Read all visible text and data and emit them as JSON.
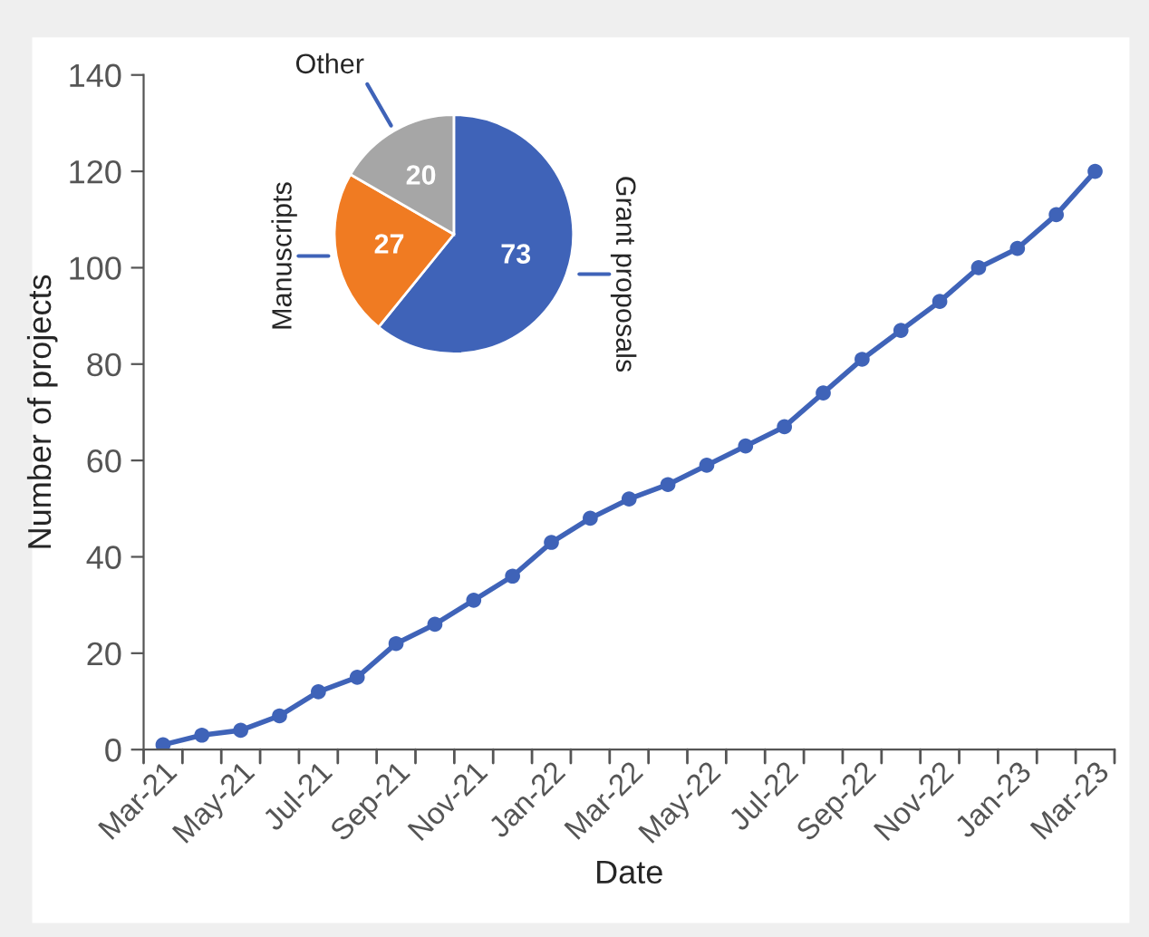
{
  "chart_data": [
    {
      "type": "line",
      "xlabel": "Date",
      "ylabel": "Number of projects",
      "categories": [
        "Mar-21",
        null,
        "May-21",
        null,
        "Jul-21",
        null,
        "Sep-21",
        null,
        "Nov-21",
        null,
        "Jan-22",
        null,
        "Mar-22",
        null,
        "May-22",
        null,
        "Jul-22",
        null,
        "Sep-22",
        null,
        "Nov-22",
        null,
        "Jan-23",
        null,
        "Mar-23"
      ],
      "series": [
        {
          "color": "#3f63b8",
          "values": [
            1,
            3,
            4,
            7,
            12,
            15,
            22,
            26,
            31,
            36,
            43,
            48,
            52,
            55,
            59,
            63,
            67,
            74,
            81,
            87,
            93,
            100,
            104,
            111,
            120
          ]
        }
      ],
      "ylim": [
        0,
        140
      ],
      "yticks": [
        0,
        20,
        40,
        60,
        80,
        100,
        120,
        140
      ],
      "grid": false,
      "legend": false,
      "marker": "circle",
      "line_style": "solid"
    },
    {
      "type": "pie",
      "categories": [
        "Grant proposals",
        "Manuscripts",
        "Other"
      ],
      "values": [
        73,
        27,
        20
      ],
      "colors": [
        "#3f63b8",
        "#f07b22",
        "#a6a6a6"
      ],
      "data_labels": true
    }
  ]
}
